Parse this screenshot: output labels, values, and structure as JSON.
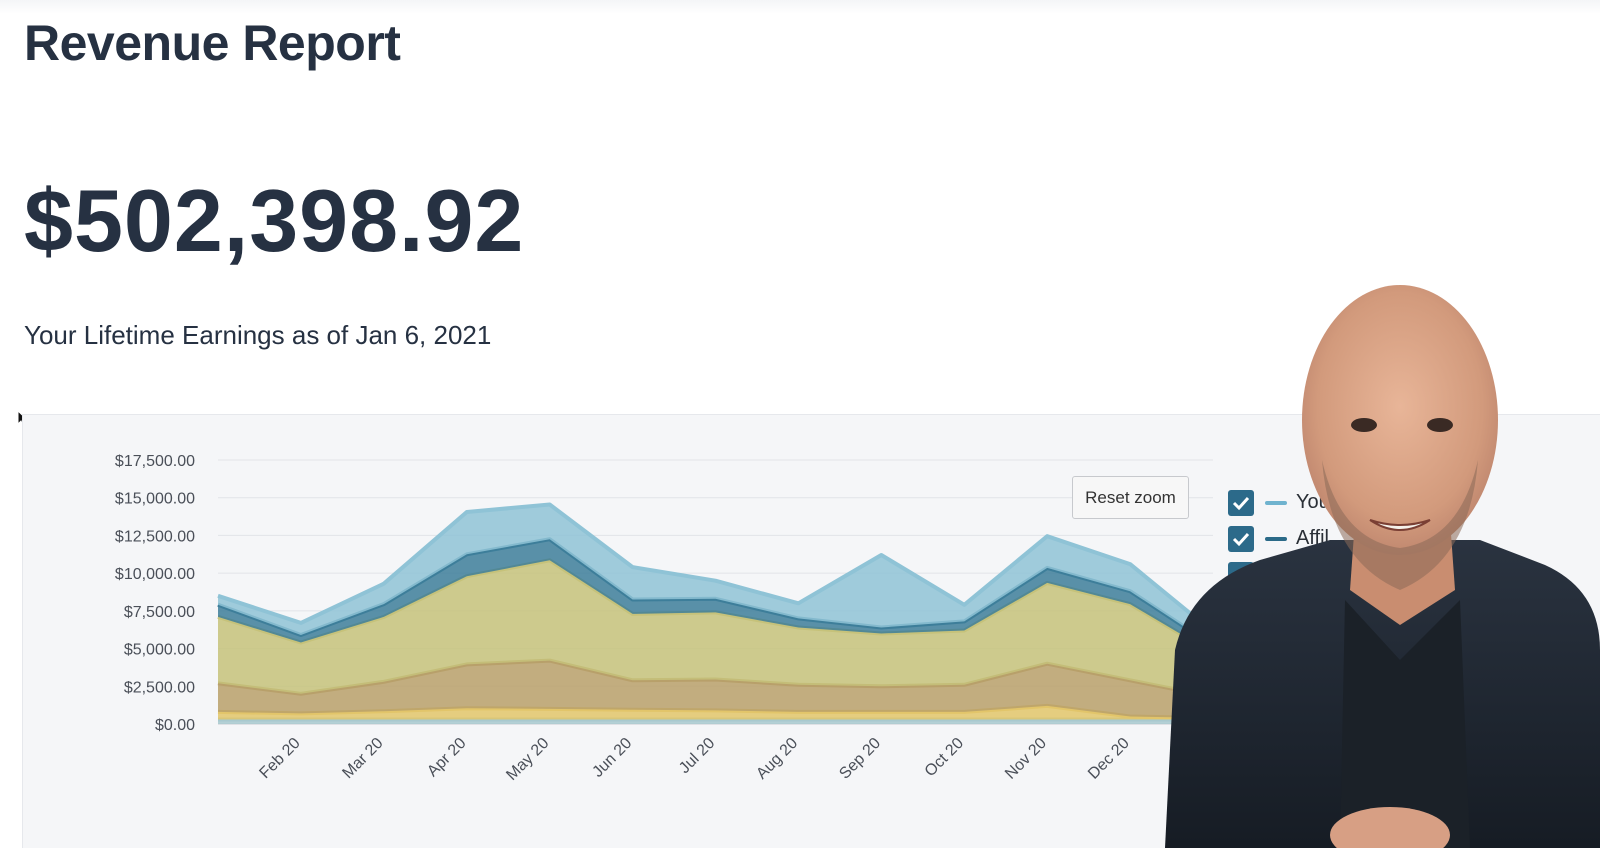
{
  "header": {
    "title": "Revenue Report",
    "amount": "$502,398.92",
    "subtitle": "Your Lifetime Earnings as of Jan 6, 2021"
  },
  "chart_controls": {
    "reset_zoom_label": "Reset zoom"
  },
  "legend": [
    {
      "label": "You",
      "color": "#6fb3cf",
      "checked": true
    },
    {
      "label": "Affil",
      "color": "#2b6a88",
      "checked": true
    },
    {
      "label": "",
      "color": "#c6c27a",
      "checked": true
    }
  ],
  "colors": {
    "text": "#263142",
    "panel": "#f5f6f8",
    "check": "#2c6a8a"
  },
  "chart_data": {
    "type": "area",
    "stacked": true,
    "categories": [
      "",
      "Feb 20",
      "Mar 20",
      "Apr 20",
      "May 20",
      "Jun 20",
      "Jul 20",
      "Aug 20",
      "Sep 20",
      "Oct 20",
      "Nov 20",
      "Dec 20",
      ""
    ],
    "ylim": [
      0,
      17500
    ],
    "yticks": [
      "$0.00",
      "$2,500.00",
      "$5,000.00",
      "$7,500.00",
      "$10,000.00",
      "$12,500.00",
      "$15,000.00",
      "$17,500.00"
    ],
    "grid": true,
    "series": [
      {
        "color": "#a8c9cf",
        "values": [
          300,
          300,
          300,
          300,
          300,
          300,
          300,
          300,
          300,
          300,
          300,
          300,
          300
        ]
      },
      {
        "color": "#e2c56a",
        "values": [
          500,
          400,
          550,
          750,
          700,
          650,
          600,
          500,
          500,
          500,
          900,
          200,
          100
        ]
      },
      {
        "color": "#b8a06a",
        "values": [
          1900,
          1300,
          1950,
          2900,
          3200,
          1950,
          2050,
          1800,
          1700,
          1800,
          2800,
          2400,
          1400
        ]
      },
      {
        "color": "#c6c27a",
        "values": [
          4400,
          3400,
          4300,
          5850,
          6650,
          4400,
          4450,
          3800,
          3500,
          3600,
          5350,
          5050,
          2900
        ]
      },
      {
        "color": "#3d7e9a",
        "values": [
          800,
          500,
          850,
          1450,
          1400,
          950,
          900,
          600,
          400,
          600,
          1000,
          850,
          500
        ]
      },
      {
        "color": "#8fc3d6",
        "values": [
          600,
          800,
          1350,
          2800,
          2300,
          2150,
          1200,
          1000,
          4800,
          1100,
          2100,
          1800,
          900
        ]
      }
    ]
  }
}
